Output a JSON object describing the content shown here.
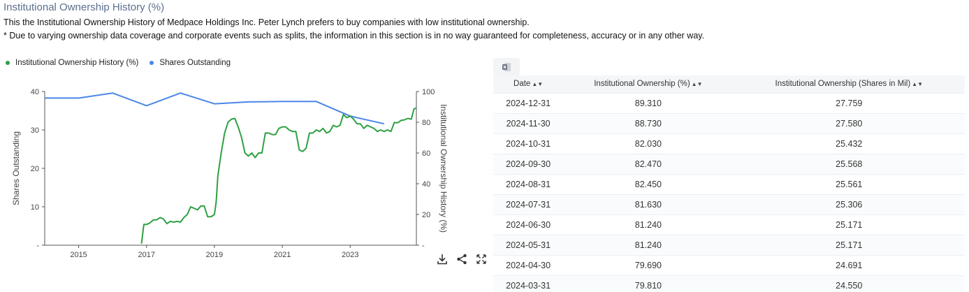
{
  "header": {
    "title": "Institutional Ownership History (%)",
    "description": "This the Institutional Ownership History of Medpace Holdings Inc. Peter Lynch prefers to buy companies with low institutional ownership.",
    "disclaimer": "* Due to varying ownership data coverage and corporate events such as splits, the information in this section is in no way guaranteed for completeness, accuracy or in any other way."
  },
  "legend": [
    {
      "label": "Institutional Ownership History (%)",
      "color": "#2ea043"
    },
    {
      "label": "Shares Outstanding",
      "color": "#4a86e8"
    }
  ],
  "tools": [
    "download-icon",
    "share-icon",
    "expand-icon"
  ],
  "table": {
    "export_icon": "excel-icon",
    "headers": [
      "Date",
      "Institutional Ownership (%)",
      "Institutional Ownership (Shares in Mil)"
    ],
    "rows": [
      [
        "2024-12-31",
        "89.310",
        "27.759"
      ],
      [
        "2024-11-30",
        "88.730",
        "27.580"
      ],
      [
        "2024-10-31",
        "82.030",
        "25.432"
      ],
      [
        "2024-09-30",
        "82.470",
        "25.568"
      ],
      [
        "2024-08-31",
        "82.450",
        "25.561"
      ],
      [
        "2024-07-31",
        "81.630",
        "25.306"
      ],
      [
        "2024-06-30",
        "81.240",
        "25.171"
      ],
      [
        "2024-05-31",
        "81.240",
        "25.171"
      ],
      [
        "2024-04-30",
        "79.690",
        "24.691"
      ],
      [
        "2024-03-31",
        "79.810",
        "24.550"
      ]
    ]
  },
  "chart_data": {
    "type": "line",
    "xlim": [
      2014,
      2024.95
    ],
    "x_ticks": [
      "2015",
      "2017",
      "2019",
      "2021",
      "2023"
    ],
    "y_left": {
      "label": "Shares Outstanding",
      "ylim": [
        0,
        40
      ],
      "ticks": [
        "-",
        "10",
        "20",
        "30",
        "40"
      ]
    },
    "y_right": {
      "label": "Institutional Ownership History (%)",
      "ylim": [
        0,
        100
      ],
      "ticks": [
        "-",
        "20",
        "40",
        "60",
        "80",
        "100"
      ]
    },
    "grid": false,
    "legend_position": "top-left",
    "series": [
      {
        "name": "Shares Outstanding",
        "axis": "left",
        "color": "#4a86e8",
        "points": [
          [
            2014,
            38.3
          ],
          [
            2015,
            38.3
          ],
          [
            2016,
            39.6
          ],
          [
            2017,
            36.3
          ],
          [
            2018,
            39.6
          ],
          [
            2019,
            36.8
          ],
          [
            2020,
            37.3
          ],
          [
            2021,
            37.4
          ],
          [
            2022,
            37.4
          ],
          [
            2023,
            33.6
          ],
          [
            2024,
            31.6
          ]
        ]
      },
      {
        "name": "Institutional Ownership History (%)",
        "axis": "right",
        "color": "#2ea043",
        "points": [
          [
            2016.85,
            1
          ],
          [
            2016.92,
            13.5
          ],
          [
            2017.0,
            13.5
          ],
          [
            2017.1,
            14.5
          ],
          [
            2017.2,
            16.5
          ],
          [
            2017.3,
            16.5
          ],
          [
            2017.4,
            18
          ],
          [
            2017.5,
            17
          ],
          [
            2017.6,
            14
          ],
          [
            2017.7,
            15.5
          ],
          [
            2017.8,
            15
          ],
          [
            2017.9,
            15.5
          ],
          [
            2018.0,
            15
          ],
          [
            2018.1,
            18
          ],
          [
            2018.2,
            20
          ],
          [
            2018.3,
            25
          ],
          [
            2018.4,
            24
          ],
          [
            2018.5,
            23
          ],
          [
            2018.6,
            25.5
          ],
          [
            2018.7,
            25.5
          ],
          [
            2018.8,
            18.5
          ],
          [
            2018.9,
            18.5
          ],
          [
            2019.0,
            20
          ],
          [
            2019.05,
            28
          ],
          [
            2019.1,
            45
          ],
          [
            2019.2,
            60
          ],
          [
            2019.3,
            73
          ],
          [
            2019.4,
            80
          ],
          [
            2019.5,
            82
          ],
          [
            2019.6,
            82.5
          ],
          [
            2019.7,
            77
          ],
          [
            2019.8,
            70
          ],
          [
            2019.9,
            60
          ],
          [
            2020.0,
            58
          ],
          [
            2020.1,
            60
          ],
          [
            2020.2,
            57
          ],
          [
            2020.3,
            60
          ],
          [
            2020.4,
            60
          ],
          [
            2020.5,
            73
          ],
          [
            2020.6,
            73
          ],
          [
            2020.7,
            72
          ],
          [
            2020.8,
            72
          ],
          [
            2020.9,
            76
          ],
          [
            2021.0,
            77
          ],
          [
            2021.1,
            77
          ],
          [
            2021.2,
            75
          ],
          [
            2021.3,
            74
          ],
          [
            2021.4,
            74
          ],
          [
            2021.5,
            62
          ],
          [
            2021.6,
            61
          ],
          [
            2021.7,
            63
          ],
          [
            2021.8,
            73
          ],
          [
            2021.9,
            73
          ],
          [
            2022.0,
            75
          ],
          [
            2022.1,
            74
          ],
          [
            2022.2,
            76
          ],
          [
            2022.3,
            73
          ],
          [
            2022.4,
            74
          ],
          [
            2022.5,
            78
          ],
          [
            2022.6,
            77
          ],
          [
            2022.7,
            78
          ],
          [
            2022.8,
            85
          ],
          [
            2022.9,
            83
          ],
          [
            2023.0,
            84
          ],
          [
            2023.1,
            82
          ],
          [
            2023.2,
            79
          ],
          [
            2023.3,
            79
          ],
          [
            2023.4,
            76
          ],
          [
            2023.5,
            78
          ],
          [
            2023.6,
            77
          ],
          [
            2023.7,
            76
          ],
          [
            2023.8,
            74
          ],
          [
            2023.9,
            75
          ],
          [
            2024.0,
            74
          ],
          [
            2024.1,
            75
          ],
          [
            2024.2,
            74
          ],
          [
            2024.3,
            79.8
          ],
          [
            2024.4,
            79.7
          ],
          [
            2024.5,
            81.2
          ],
          [
            2024.6,
            81.6
          ],
          [
            2024.7,
            82.5
          ],
          [
            2024.8,
            82
          ],
          [
            2024.88,
            88.7
          ],
          [
            2024.95,
            89.3
          ]
        ]
      }
    ]
  }
}
